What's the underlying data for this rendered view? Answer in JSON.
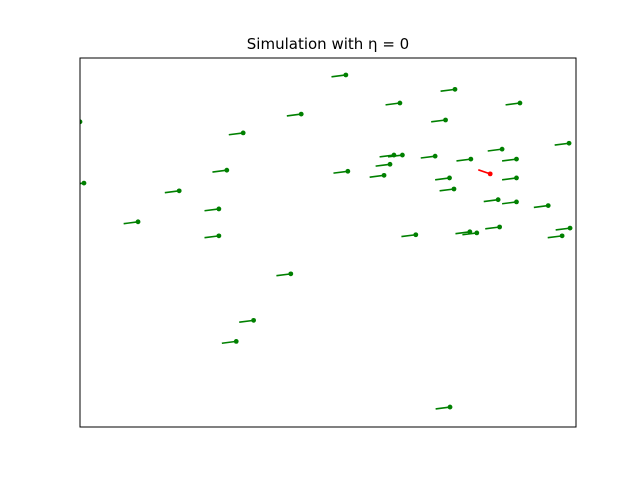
{
  "chart_data": {
    "type": "scatter",
    "title": "Simulation with η = 0",
    "xlabel": "",
    "ylabel": "",
    "xlim": [
      0,
      1
    ],
    "ylim": [
      0,
      1
    ],
    "grid": false,
    "axes_ticks": false,
    "colors": {
      "agent": "#008000",
      "highlight": "#ff0000"
    },
    "series": [
      {
        "color": "#008000",
        "points": [
          {
            "x": 0.536,
            "y": 0.954,
            "dx": -0.029,
            "dy": -0.005
          },
          {
            "x": 0.756,
            "y": 0.915,
            "dx": -0.029,
            "dy": -0.005
          },
          {
            "x": 0.645,
            "y": 0.878,
            "dx": -0.029,
            "dy": -0.005
          },
          {
            "x": 0.887,
            "y": 0.878,
            "dx": -0.029,
            "dy": -0.005
          },
          {
            "x": 0.446,
            "y": 0.848,
            "dx": -0.029,
            "dy": -0.005
          },
          {
            "x": 0.737,
            "y": 0.832,
            "dx": -0.029,
            "dy": -0.005
          },
          {
            "x": 0.0,
            "y": 0.827,
            "dx": -0.029,
            "dy": -0.005
          },
          {
            "x": 0.329,
            "y": 0.797,
            "dx": -0.029,
            "dy": -0.005
          },
          {
            "x": 0.986,
            "y": 0.769,
            "dx": -0.029,
            "dy": -0.005
          },
          {
            "x": 0.851,
            "y": 0.753,
            "dx": -0.029,
            "dy": -0.005
          },
          {
            "x": 0.633,
            "y": 0.737,
            "dx": -0.029,
            "dy": -0.005
          },
          {
            "x": 0.65,
            "y": 0.737,
            "dx": -0.029,
            "dy": -0.005
          },
          {
            "x": 0.716,
            "y": 0.734,
            "dx": -0.029,
            "dy": -0.005
          },
          {
            "x": 0.788,
            "y": 0.726,
            "dx": -0.029,
            "dy": -0.005
          },
          {
            "x": 0.88,
            "y": 0.726,
            "dx": -0.029,
            "dy": -0.005
          },
          {
            "x": 0.625,
            "y": 0.712,
            "dx": -0.029,
            "dy": -0.005
          },
          {
            "x": 0.296,
            "y": 0.696,
            "dx": -0.029,
            "dy": -0.005
          },
          {
            "x": 0.54,
            "y": 0.693,
            "dx": -0.029,
            "dy": -0.005
          },
          {
            "x": 0.613,
            "y": 0.682,
            "dx": -0.029,
            "dy": -0.005
          },
          {
            "x": 0.745,
            "y": 0.675,
            "dx": -0.029,
            "dy": -0.005
          },
          {
            "x": 0.88,
            "y": 0.675,
            "dx": -0.029,
            "dy": -0.005
          },
          {
            "x": 0.008,
            "y": 0.661,
            "dx": -0.029,
            "dy": -0.005
          },
          {
            "x": 0.754,
            "y": 0.645,
            "dx": -0.029,
            "dy": -0.005
          },
          {
            "x": 0.2,
            "y": 0.64,
            "dx": -0.029,
            "dy": -0.005
          },
          {
            "x": 0.843,
            "y": 0.616,
            "dx": -0.029,
            "dy": -0.005
          },
          {
            "x": 0.88,
            "y": 0.61,
            "dx": -0.029,
            "dy": -0.005
          },
          {
            "x": 0.944,
            "y": 0.6,
            "dx": -0.029,
            "dy": -0.005
          },
          {
            "x": 0.28,
            "y": 0.591,
            "dx": -0.029,
            "dy": -0.005
          },
          {
            "x": 0.117,
            "y": 0.556,
            "dx": -0.029,
            "dy": -0.005
          },
          {
            "x": 0.988,
            "y": 0.539,
            "dx": -0.029,
            "dy": -0.005
          },
          {
            "x": 0.846,
            "y": 0.542,
            "dx": -0.029,
            "dy": -0.005
          },
          {
            "x": 0.786,
            "y": 0.529,
            "dx": -0.029,
            "dy": -0.005
          },
          {
            "x": 0.8,
            "y": 0.526,
            "dx": -0.029,
            "dy": -0.005
          },
          {
            "x": 0.677,
            "y": 0.521,
            "dx": -0.029,
            "dy": -0.005
          },
          {
            "x": 0.28,
            "y": 0.518,
            "dx": -0.029,
            "dy": -0.005
          },
          {
            "x": 0.972,
            "y": 0.518,
            "dx": -0.029,
            "dy": -0.005
          },
          {
            "x": 0.425,
            "y": 0.415,
            "dx": -0.029,
            "dy": -0.005
          },
          {
            "x": 0.35,
            "y": 0.289,
            "dx": -0.029,
            "dy": -0.005
          },
          {
            "x": 0.315,
            "y": 0.232,
            "dx": -0.029,
            "dy": -0.005
          },
          {
            "x": 0.746,
            "y": 0.054,
            "dx": -0.029,
            "dy": -0.005
          }
        ]
      },
      {
        "color": "#ff0000",
        "points": [
          {
            "x": 0.827,
            "y": 0.686,
            "dx": -0.024,
            "dy": 0.011
          }
        ]
      }
    ]
  }
}
